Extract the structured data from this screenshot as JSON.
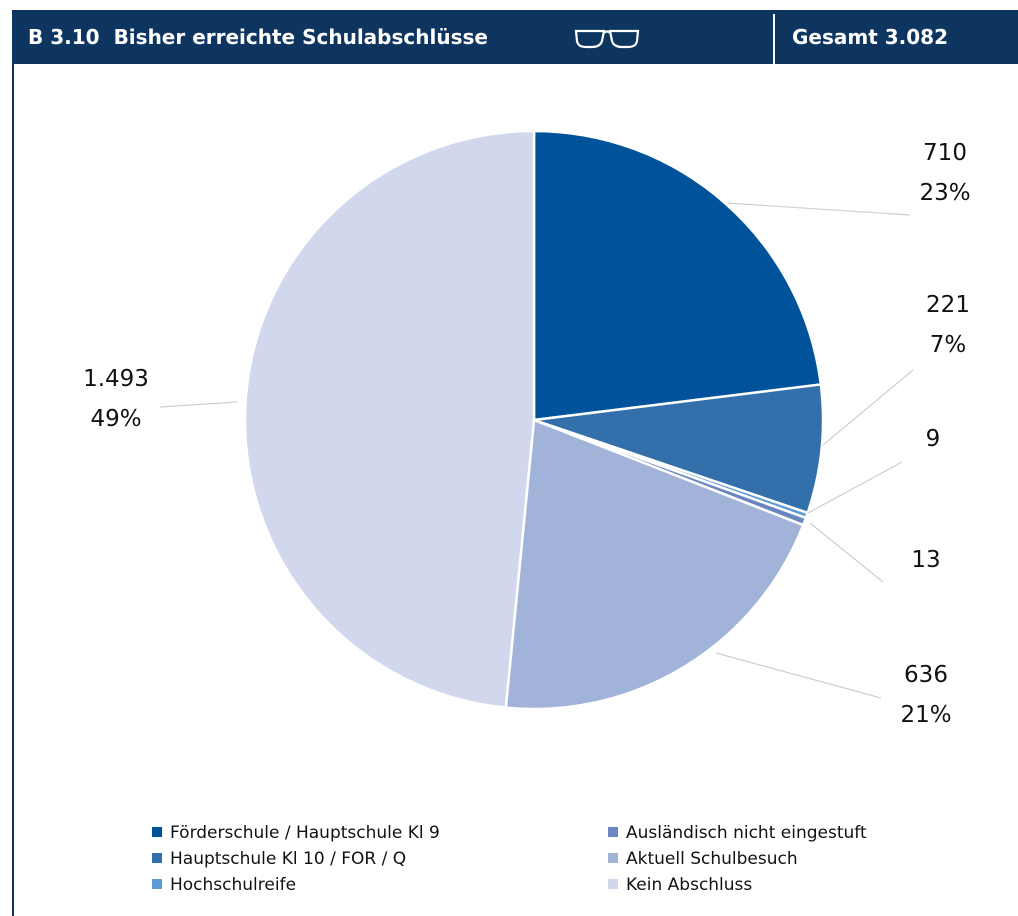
{
  "header": {
    "code": "B 3.10",
    "title": "Bisher erreichte Schulabschlüsse",
    "total": "Gesamt 3.082"
  },
  "chart_data": {
    "type": "pie",
    "total": 3082,
    "slices": [
      {
        "name": "Förderschule / Hauptschule Kl 9",
        "value": 710,
        "value_label": "710",
        "percent_label": "23%",
        "color": "#00539b"
      },
      {
        "name": "Hauptschule Kl 10 / FOR / Q",
        "value": 221,
        "value_label": "221",
        "percent_label": "7%",
        "color": "#336fab"
      },
      {
        "name": "Hochschulreife",
        "value": 9,
        "value_label": "9",
        "percent_label": "",
        "color": "#5b9ad6"
      },
      {
        "name": "Ausländisch nicht eingestuft",
        "value": 13,
        "value_label": "13",
        "percent_label": "",
        "color": "#6987be"
      },
      {
        "name": "Aktuell Schulbesuch",
        "value": 636,
        "value_label": "636",
        "percent_label": "21%",
        "color": "#a2b3da"
      },
      {
        "name": "Kein Abschluss",
        "value": 1493,
        "value_label": "1.493",
        "percent_label": "49%",
        "color": "#d1d7ec"
      }
    ],
    "legend_order": [
      0,
      3,
      1,
      4,
      2,
      5
    ],
    "legend_position": "bottom"
  }
}
